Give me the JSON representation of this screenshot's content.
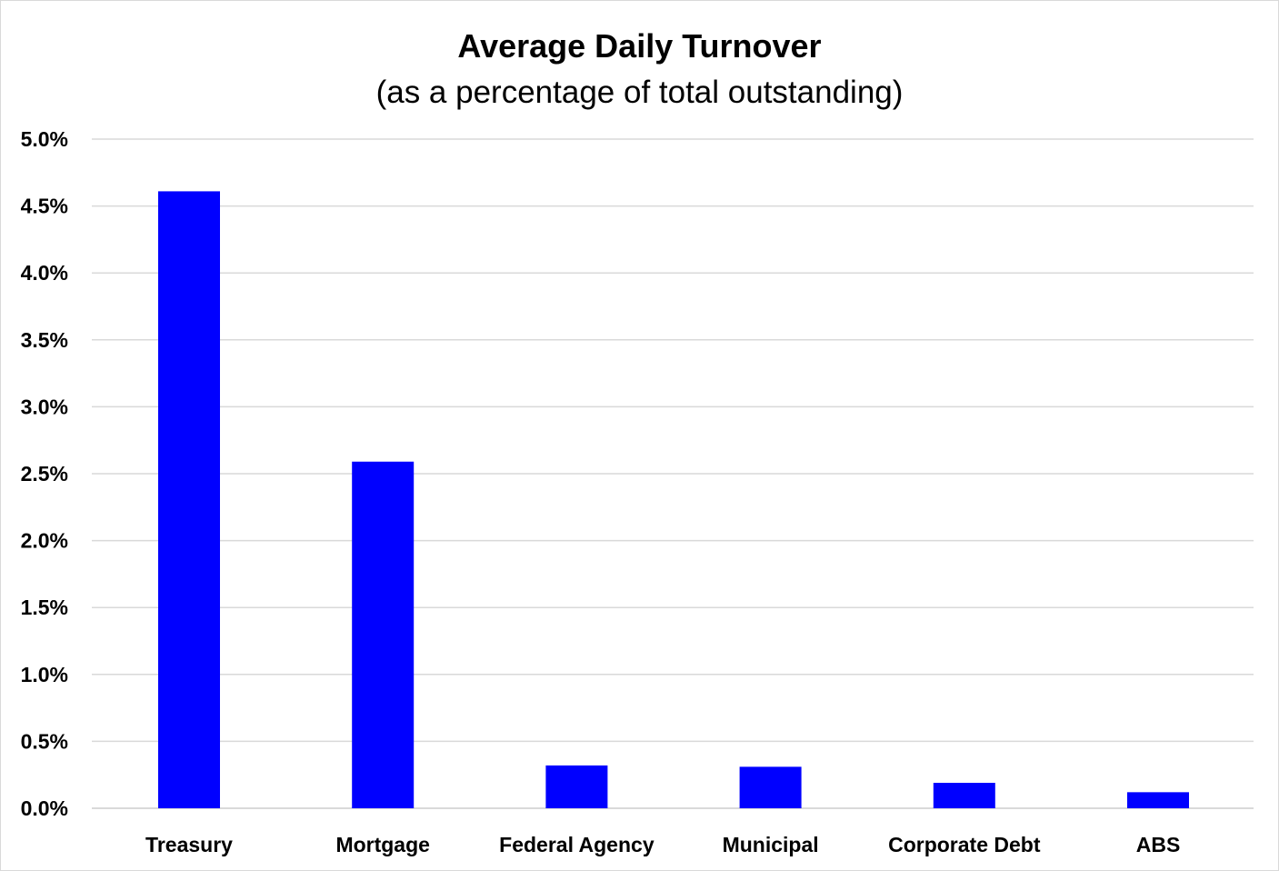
{
  "chart_data": {
    "type": "bar",
    "title": "Average Daily Turnover",
    "subtitle": "(as a percentage of total outstanding)",
    "categories": [
      "Treasury",
      "Mortgage",
      "Federal Agency",
      "Municipal",
      "Corporate Debt",
      "ABS"
    ],
    "values": [
      4.61,
      2.59,
      0.32,
      0.31,
      0.19,
      0.12
    ],
    "y_unit": "%",
    "ylim": [
      0,
      5.0
    ],
    "y_ticks": [
      0.0,
      0.5,
      1.0,
      1.5,
      2.0,
      2.5,
      3.0,
      3.5,
      4.0,
      4.5,
      5.0
    ],
    "y_tick_labels": [
      "0.0%",
      "0.5%",
      "1.0%",
      "1.5%",
      "2.0%",
      "2.5%",
      "3.0%",
      "3.5%",
      "4.0%",
      "4.5%",
      "5.0%"
    ],
    "xlabel": "",
    "ylabel": "",
    "grid": true,
    "legend": "none",
    "bar_color": "#0000ff",
    "grid_color": "#d9d9d9"
  }
}
